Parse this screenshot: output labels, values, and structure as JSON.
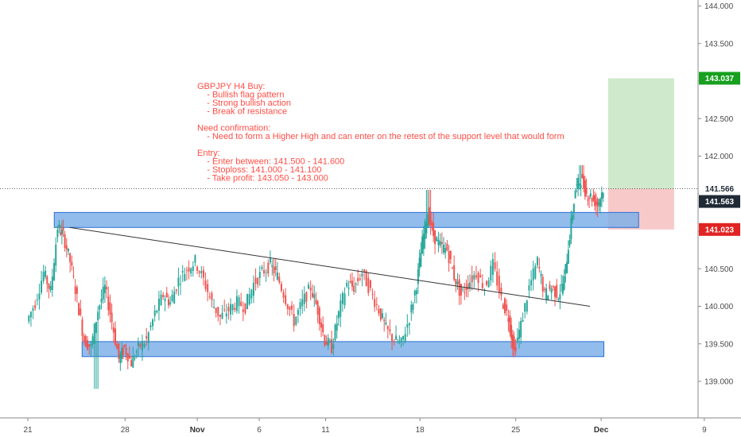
{
  "chart_data": {
    "type": "candlestick",
    "instrument": "GBPJPY",
    "timeframe": "H4",
    "y_axis": {
      "side": "right",
      "ticks": [
        139.0,
        139.5,
        140.0,
        140.5,
        141.0,
        141.5,
        142.0,
        142.5,
        143.0,
        143.5,
        144.0
      ],
      "tick_labels": [
        "139.000",
        "139.500",
        "140.000",
        "140.500",
        "141.000",
        "141.500",
        "142.000",
        "142.500",
        "143.000",
        "143.500",
        "144.000"
      ],
      "range": [
        138.55,
        144.1
      ]
    },
    "x_axis": {
      "tick_labels": [
        {
          "label": "21",
          "pos": 0.0,
          "bold": false
        },
        {
          "label": "28",
          "pos": 0.1398,
          "bold": false
        },
        {
          "label": "Nov",
          "pos": 0.2436,
          "bold": true
        },
        {
          "label": "6",
          "pos": 0.3326,
          "bold": false
        },
        {
          "label": "11",
          "pos": 0.428,
          "bold": false
        },
        {
          "label": "18",
          "pos": 0.5636,
          "bold": false
        },
        {
          "label": "25",
          "pos": 0.7013,
          "bold": false
        },
        {
          "label": "Dec",
          "pos": 0.8241,
          "bold": true
        },
        {
          "label": "9",
          "pos": 0.9724,
          "bold": false
        }
      ]
    },
    "close_points": [
      [
        0.0,
        139.8
      ],
      [
        0.012,
        140.05
      ],
      [
        0.024,
        140.45
      ],
      [
        0.034,
        140.2
      ],
      [
        0.044,
        141.05
      ],
      [
        0.052,
        140.95
      ],
      [
        0.062,
        140.6
      ],
      [
        0.072,
        140.1
      ],
      [
        0.082,
        139.55
      ],
      [
        0.092,
        139.45
      ],
      [
        0.102,
        139.95
      ],
      [
        0.112,
        140.25
      ],
      [
        0.122,
        139.8
      ],
      [
        0.132,
        139.3
      ],
      [
        0.14,
        139.45
      ],
      [
        0.15,
        139.25
      ],
      [
        0.16,
        139.45
      ],
      [
        0.172,
        139.55
      ],
      [
        0.184,
        139.9
      ],
      [
        0.196,
        140.15
      ],
      [
        0.206,
        140.05
      ],
      [
        0.218,
        140.35
      ],
      [
        0.23,
        140.5
      ],
      [
        0.242,
        140.6
      ],
      [
        0.254,
        140.35
      ],
      [
        0.266,
        140.05
      ],
      [
        0.278,
        139.85
      ],
      [
        0.29,
        139.95
      ],
      [
        0.302,
        140.05
      ],
      [
        0.314,
        140.0
      ],
      [
        0.326,
        140.3
      ],
      [
        0.338,
        140.45
      ],
      [
        0.35,
        140.55
      ],
      [
        0.36,
        140.4
      ],
      [
        0.372,
        140.1
      ],
      [
        0.384,
        139.8
      ],
      [
        0.396,
        140.05
      ],
      [
        0.408,
        140.25
      ],
      [
        0.418,
        139.95
      ],
      [
        0.428,
        139.55
      ],
      [
        0.438,
        139.45
      ],
      [
        0.448,
        139.9
      ],
      [
        0.46,
        140.3
      ],
      [
        0.47,
        140.25
      ],
      [
        0.482,
        140.45
      ],
      [
        0.494,
        140.2
      ],
      [
        0.506,
        139.95
      ],
      [
        0.516,
        139.7
      ],
      [
        0.528,
        139.55
      ],
      [
        0.538,
        139.5
      ],
      [
        0.55,
        139.85
      ],
      [
        0.56,
        140.3
      ],
      [
        0.568,
        140.85
      ],
      [
        0.576,
        141.25
      ],
      [
        0.584,
        140.95
      ],
      [
        0.594,
        140.8
      ],
      [
        0.604,
        140.75
      ],
      [
        0.614,
        140.4
      ],
      [
        0.624,
        140.15
      ],
      [
        0.634,
        140.3
      ],
      [
        0.646,
        140.45
      ],
      [
        0.658,
        140.25
      ],
      [
        0.67,
        140.55
      ],
      [
        0.682,
        140.1
      ],
      [
        0.692,
        139.85
      ],
      [
        0.7,
        139.4
      ],
      [
        0.71,
        139.75
      ],
      [
        0.722,
        140.25
      ],
      [
        0.734,
        140.6
      ],
      [
        0.744,
        140.15
      ],
      [
        0.754,
        140.25
      ],
      [
        0.764,
        140.15
      ],
      [
        0.772,
        140.35
      ],
      [
        0.78,
        140.95
      ],
      [
        0.788,
        141.55
      ],
      [
        0.796,
        141.7
      ],
      [
        0.804,
        141.5
      ],
      [
        0.812,
        141.45
      ],
      [
        0.82,
        141.35
      ],
      [
        0.828,
        141.566
      ]
    ],
    "notable_levels": {
      "current_price": "141.566",
      "secondary_price": "141.563",
      "take_profit_tag": "143.037",
      "stop_loss_tag": "141.023"
    },
    "zones": [
      {
        "name": "resistance-zone",
        "x0": 0.038,
        "x1": 0.878,
        "y_low": 141.05,
        "y_high": 141.25
      },
      {
        "name": "support-zone",
        "x0": 0.078,
        "x1": 0.828,
        "y_low": 139.33,
        "y_high": 139.53
      }
    ],
    "trendline": {
      "x0": 0.06,
      "y0": 141.05,
      "x1": 0.808,
      "y1": 140.0
    },
    "position": {
      "x0": 0.834,
      "x1": 0.929,
      "entry": 141.566,
      "target": 143.037,
      "stop": 141.023
    },
    "annotation_lines": [
      "GBPJPY H4 Buy:",
      "    - Bullish flag pattern",
      "    - Strong bullish action",
      "    - Break of resistance",
      "",
      "Need confirmation:",
      "    - Need to form a Higher High and can enter on the retest of the support level that would form",
      "",
      "Entry:",
      "    - Enter between: 141.500 - 141.600",
      "    - Stoploss: 141.000 - 141.100",
      "    - Take profit: 143.050 - 143.000"
    ],
    "colors": {
      "up": "#26a69a",
      "down": "#ef5350",
      "zone_fill": "#7fb0e8",
      "zone_stroke": "#2a6fd6",
      "profit_fill": "#cfe9cc",
      "loss_fill": "#f8c9c9",
      "current_tag": "#1f2a36",
      "target_tag": "#17a01f",
      "stop_tag": "#e12323",
      "note_text": "#ff4e46"
    }
  }
}
